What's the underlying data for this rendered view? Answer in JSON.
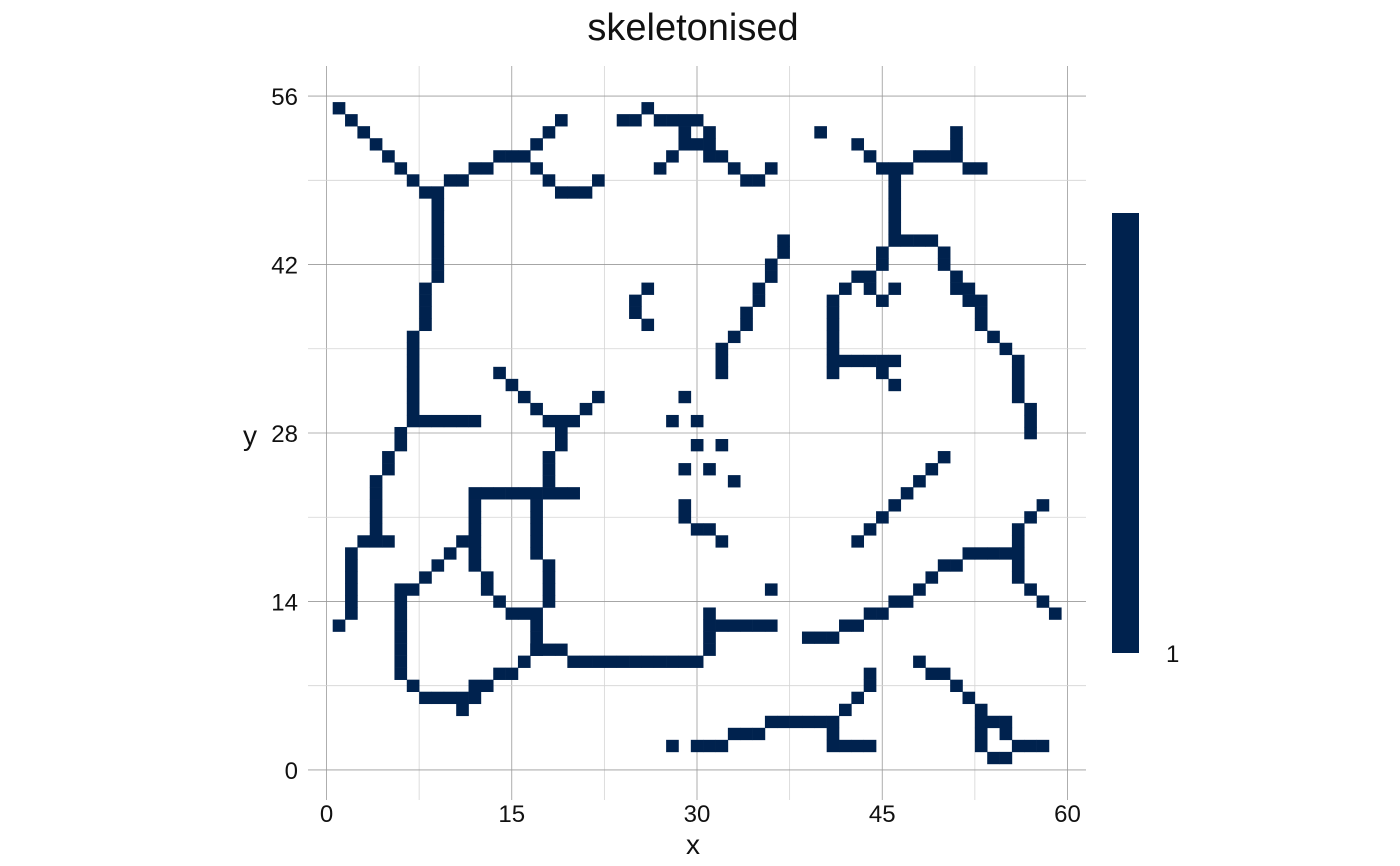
{
  "chart_data": {
    "type": "heatmap",
    "title": "skeletonised",
    "xlabel": "x",
    "ylabel": "y",
    "xlim": [
      -1.5,
      61.5
    ],
    "ylim": [
      -2.5,
      58.5
    ],
    "x_ticks": [
      0,
      15,
      30,
      45,
      60
    ],
    "y_ticks": [
      0,
      14,
      28,
      42,
      56
    ],
    "grid": true,
    "legend": {
      "position": "right",
      "labels": [
        "1"
      ],
      "color": "#00224e"
    },
    "value": 1,
    "cells": [
      [
        1,
        55
      ],
      [
        2,
        54
      ],
      [
        3,
        53
      ],
      [
        4,
        52
      ],
      [
        5,
        51
      ],
      [
        6,
        50
      ],
      [
        7,
        49
      ],
      [
        8,
        48
      ],
      [
        9,
        48
      ],
      [
        9,
        47
      ],
      [
        9,
        46
      ],
      [
        9,
        45
      ],
      [
        9,
        44
      ],
      [
        9,
        43
      ],
      [
        9,
        42
      ],
      [
        9,
        41
      ],
      [
        8,
        40
      ],
      [
        8,
        39
      ],
      [
        8,
        38
      ],
      [
        8,
        37
      ],
      [
        7,
        36
      ],
      [
        7,
        35
      ],
      [
        7,
        34
      ],
      [
        7,
        33
      ],
      [
        7,
        32
      ],
      [
        7,
        31
      ],
      [
        7,
        30
      ],
      [
        7,
        29
      ],
      [
        8,
        29
      ],
      [
        9,
        29
      ],
      [
        10,
        29
      ],
      [
        11,
        29
      ],
      [
        12,
        29
      ],
      [
        6,
        28
      ],
      [
        6,
        27
      ],
      [
        5,
        26
      ],
      [
        5,
        25
      ],
      [
        4,
        24
      ],
      [
        4,
        23
      ],
      [
        4,
        22
      ],
      [
        4,
        21
      ],
      [
        4,
        20
      ],
      [
        3,
        19
      ],
      [
        4,
        19
      ],
      [
        5,
        19
      ],
      [
        2,
        18
      ],
      [
        2,
        17
      ],
      [
        2,
        16
      ],
      [
        2,
        15
      ],
      [
        2,
        14
      ],
      [
        2,
        13
      ],
      [
        1,
        12
      ],
      [
        10,
        49
      ],
      [
        11,
        49
      ],
      [
        12,
        50
      ],
      [
        13,
        50
      ],
      [
        14,
        51
      ],
      [
        15,
        51
      ],
      [
        16,
        51
      ],
      [
        17,
        52
      ],
      [
        18,
        53
      ],
      [
        19,
        54
      ],
      [
        17,
        50
      ],
      [
        18,
        49
      ],
      [
        19,
        48
      ],
      [
        20,
        48
      ],
      [
        21,
        48
      ],
      [
        22,
        49
      ],
      [
        24,
        54
      ],
      [
        25,
        54
      ],
      [
        26,
        55
      ],
      [
        27,
        54
      ],
      [
        28,
        54
      ],
      [
        29,
        54
      ],
      [
        30,
        54
      ],
      [
        31,
        53
      ],
      [
        29,
        53
      ],
      [
        30,
        52
      ],
      [
        29,
        52
      ],
      [
        31,
        52
      ],
      [
        32,
        51
      ],
      [
        28,
        51
      ],
      [
        27,
        50
      ],
      [
        31,
        51
      ],
      [
        33,
        50
      ],
      [
        34,
        49
      ],
      [
        35,
        49
      ],
      [
        36,
        50
      ],
      [
        40,
        53
      ],
      [
        43,
        52
      ],
      [
        44,
        51
      ],
      [
        45,
        50
      ],
      [
        46,
        50
      ],
      [
        47,
        50
      ],
      [
        48,
        51
      ],
      [
        49,
        51
      ],
      [
        50,
        51
      ],
      [
        51,
        51
      ],
      [
        51,
        52
      ],
      [
        51,
        53
      ],
      [
        52,
        50
      ],
      [
        53,
        50
      ],
      [
        46,
        49
      ],
      [
        46,
        48
      ],
      [
        46,
        47
      ],
      [
        46,
        46
      ],
      [
        46,
        45
      ],
      [
        46,
        44
      ],
      [
        47,
        44
      ],
      [
        48,
        44
      ],
      [
        49,
        44
      ],
      [
        50,
        43
      ],
      [
        50,
        42
      ],
      [
        51,
        41
      ],
      [
        51,
        40
      ],
      [
        52,
        40
      ],
      [
        52,
        39
      ],
      [
        53,
        39
      ],
      [
        53,
        38
      ],
      [
        53,
        37
      ],
      [
        54,
        36
      ],
      [
        55,
        35
      ],
      [
        56,
        34
      ],
      [
        56,
        33
      ],
      [
        56,
        32
      ],
      [
        56,
        31
      ],
      [
        57,
        30
      ],
      [
        57,
        29
      ],
      [
        57,
        28
      ],
      [
        45,
        43
      ],
      [
        45,
        42
      ],
      [
        44,
        41
      ],
      [
        43,
        41
      ],
      [
        42,
        40
      ],
      [
        44,
        40
      ],
      [
        45,
        39
      ],
      [
        46,
        40
      ],
      [
        41,
        39
      ],
      [
        41,
        38
      ],
      [
        41,
        37
      ],
      [
        41,
        36
      ],
      [
        41,
        35
      ],
      [
        41,
        34
      ],
      [
        41,
        33
      ],
      [
        42,
        34
      ],
      [
        43,
        34
      ],
      [
        44,
        34
      ],
      [
        45,
        34
      ],
      [
        46,
        34
      ],
      [
        45,
        33
      ],
      [
        46,
        32
      ],
      [
        37,
        44
      ],
      [
        37,
        43
      ],
      [
        36,
        42
      ],
      [
        36,
        41
      ],
      [
        35,
        40
      ],
      [
        35,
        39
      ],
      [
        34,
        38
      ],
      [
        34,
        37
      ],
      [
        33,
        36
      ],
      [
        32,
        35
      ],
      [
        32,
        34
      ],
      [
        32,
        33
      ],
      [
        26,
        40
      ],
      [
        25,
        39
      ],
      [
        25,
        38
      ],
      [
        26,
        37
      ],
      [
        14,
        33
      ],
      [
        15,
        32
      ],
      [
        16,
        31
      ],
      [
        17,
        30
      ],
      [
        18,
        29
      ],
      [
        19,
        29
      ],
      [
        20,
        29
      ],
      [
        21,
        30
      ],
      [
        22,
        31
      ],
      [
        19,
        28
      ],
      [
        19,
        27
      ],
      [
        18,
        26
      ],
      [
        18,
        25
      ],
      [
        18,
        24
      ],
      [
        12,
        23
      ],
      [
        13,
        23
      ],
      [
        14,
        23
      ],
      [
        15,
        23
      ],
      [
        16,
        23
      ],
      [
        17,
        23
      ],
      [
        18,
        23
      ],
      [
        19,
        23
      ],
      [
        20,
        23
      ],
      [
        12,
        22
      ],
      [
        12,
        21
      ],
      [
        12,
        20
      ],
      [
        12,
        19
      ],
      [
        11,
        19
      ],
      [
        10,
        18
      ],
      [
        9,
        17
      ],
      [
        8,
        16
      ],
      [
        7,
        15
      ],
      [
        6,
        15
      ],
      [
        6,
        14
      ],
      [
        6,
        13
      ],
      [
        6,
        12
      ],
      [
        6,
        11
      ],
      [
        6,
        10
      ],
      [
        6,
        9
      ],
      [
        6,
        8
      ],
      [
        7,
        7
      ],
      [
        8,
        6
      ],
      [
        9,
        6
      ],
      [
        10,
        6
      ],
      [
        11,
        6
      ],
      [
        11,
        5
      ],
      [
        12,
        7
      ],
      [
        13,
        7
      ],
      [
        12,
        6
      ],
      [
        14,
        8
      ],
      [
        15,
        8
      ],
      [
        16,
        9
      ],
      [
        17,
        10
      ],
      [
        12,
        18
      ],
      [
        12,
        17
      ],
      [
        13,
        16
      ],
      [
        13,
        15
      ],
      [
        14,
        14
      ],
      [
        15,
        13
      ],
      [
        16,
        13
      ],
      [
        17,
        13
      ],
      [
        17,
        12
      ],
      [
        17,
        11
      ],
      [
        17,
        10
      ],
      [
        18,
        10
      ],
      [
        19,
        10
      ],
      [
        20,
        9
      ],
      [
        21,
        9
      ],
      [
        22,
        9
      ],
      [
        23,
        9
      ],
      [
        24,
        9
      ],
      [
        25,
        9
      ],
      [
        26,
        9
      ],
      [
        27,
        9
      ],
      [
        28,
        9
      ],
      [
        29,
        9
      ],
      [
        30,
        9
      ],
      [
        31,
        10
      ],
      [
        31,
        11
      ],
      [
        31,
        12
      ],
      [
        31,
        13
      ],
      [
        32,
        12
      ],
      [
        33,
        12
      ],
      [
        34,
        12
      ],
      [
        35,
        12
      ],
      [
        36,
        12
      ],
      [
        17,
        22
      ],
      [
        17,
        21
      ],
      [
        17,
        20
      ],
      [
        17,
        19
      ],
      [
        17,
        18
      ],
      [
        18,
        17
      ],
      [
        18,
        16
      ],
      [
        18,
        15
      ],
      [
        18,
        14
      ],
      [
        29,
        31
      ],
      [
        28,
        29
      ],
      [
        30,
        27
      ],
      [
        29,
        25
      ],
      [
        30,
        29
      ],
      [
        32,
        27
      ],
      [
        31,
        25
      ],
      [
        33,
        24
      ],
      [
        29,
        22
      ],
      [
        29,
        21
      ],
      [
        30,
        20
      ],
      [
        31,
        20
      ],
      [
        32,
        19
      ],
      [
        36,
        15
      ],
      [
        43,
        19
      ],
      [
        44,
        20
      ],
      [
        45,
        21
      ],
      [
        46,
        22
      ],
      [
        47,
        23
      ],
      [
        48,
        24
      ],
      [
        49,
        25
      ],
      [
        50,
        26
      ],
      [
        39,
        11
      ],
      [
        40,
        11
      ],
      [
        41,
        11
      ],
      [
        42,
        12
      ],
      [
        43,
        12
      ],
      [
        44,
        13
      ],
      [
        45,
        13
      ],
      [
        46,
        14
      ],
      [
        47,
        14
      ],
      [
        48,
        15
      ],
      [
        49,
        16
      ],
      [
        50,
        17
      ],
      [
        51,
        17
      ],
      [
        52,
        18
      ],
      [
        53,
        18
      ],
      [
        54,
        18
      ],
      [
        55,
        18
      ],
      [
        56,
        18
      ],
      [
        56,
        19
      ],
      [
        56,
        20
      ],
      [
        57,
        21
      ],
      [
        58,
        22
      ],
      [
        56,
        17
      ],
      [
        56,
        16
      ],
      [
        57,
        15
      ],
      [
        58,
        14
      ],
      [
        59,
        13
      ],
      [
        44,
        8
      ],
      [
        44,
        7
      ],
      [
        43,
        6
      ],
      [
        42,
        5
      ],
      [
        41,
        4
      ],
      [
        40,
        4
      ],
      [
        39,
        4
      ],
      [
        38,
        4
      ],
      [
        37,
        4
      ],
      [
        36,
        4
      ],
      [
        35,
        3
      ],
      [
        34,
        3
      ],
      [
        33,
        3
      ],
      [
        32,
        2
      ],
      [
        31,
        2
      ],
      [
        30,
        2
      ],
      [
        41,
        3
      ],
      [
        41,
        2
      ],
      [
        42,
        2
      ],
      [
        43,
        2
      ],
      [
        44,
        2
      ],
      [
        28,
        2
      ],
      [
        48,
        9
      ],
      [
        49,
        8
      ],
      [
        50,
        8
      ],
      [
        51,
        7
      ],
      [
        52,
        6
      ],
      [
        53,
        5
      ],
      [
        53,
        4
      ],
      [
        53,
        3
      ],
      [
        53,
        2
      ],
      [
        54,
        4
      ],
      [
        55,
        4
      ],
      [
        55,
        3
      ],
      [
        56,
        2
      ],
      [
        57,
        2
      ],
      [
        58,
        2
      ],
      [
        54,
        1
      ],
      [
        55,
        1
      ]
    ]
  }
}
